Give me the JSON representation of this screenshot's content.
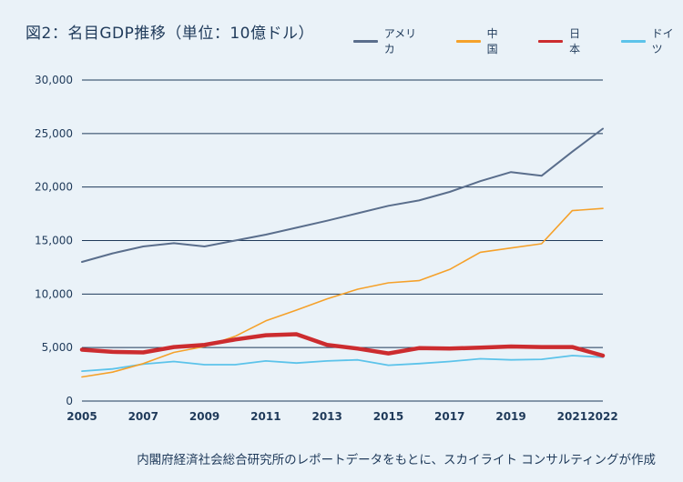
{
  "title": "図2：名目GDP推移（単位：10億ドル）",
  "source": "内閣府経済社会総合研究所のレポートデータをもとに、スカイライト コンサルティングが作成",
  "chart_data": {
    "type": "line",
    "title": "図2：名目GDP推移（単位：10億ドル）",
    "x": [
      2005,
      2006,
      2007,
      2008,
      2009,
      2010,
      2011,
      2012,
      2013,
      2014,
      2015,
      2016,
      2017,
      2018,
      2019,
      2020,
      2021,
      2022
    ],
    "xticks": [
      "2005",
      "2007",
      "2009",
      "2011",
      "2013",
      "2015",
      "2017",
      "2019",
      "2021",
      "2022"
    ],
    "xtick_values": [
      2005,
      2007,
      2009,
      2011,
      2013,
      2015,
      2017,
      2019,
      2021,
      2022
    ],
    "yticks": [
      "0",
      "5,000",
      "10,000",
      "15,000",
      "20,000",
      "25,000",
      "30,000"
    ],
    "ytick_values": [
      0,
      5000,
      10000,
      15000,
      20000,
      25000,
      30000
    ],
    "ylim": [
      0,
      30000
    ],
    "xlim": [
      2005,
      2022
    ],
    "grid": "horizontal",
    "legend_position": "top-right",
    "series": [
      {
        "name": "アメリカ",
        "color": "#5a6e8c",
        "values": [
          13000,
          13800,
          14450,
          14750,
          14450,
          15000,
          15550,
          16200,
          16850,
          17550,
          18250,
          18750,
          19550,
          20550,
          21400,
          21050,
          23300,
          25450
        ]
      },
      {
        "name": "中国",
        "color": "#f5a12a",
        "values": [
          2250,
          2700,
          3500,
          4550,
          5100,
          6050,
          7500,
          8500,
          9550,
          10450,
          11050,
          11250,
          12300,
          13900,
          14300,
          14700,
          17800,
          18000
        ]
      },
      {
        "name": "日本",
        "color": "#cc2c2f",
        "values": [
          4800,
          4600,
          4550,
          5050,
          5250,
          5750,
          6150,
          6250,
          5250,
          4900,
          4450,
          4950,
          4900,
          5000,
          5100,
          5050,
          5050,
          4250
        ]
      },
      {
        "name": "ドイツ",
        "color": "#5cc3ea",
        "values": [
          2800,
          3000,
          3450,
          3700,
          3400,
          3400,
          3750,
          3550,
          3750,
          3850,
          3350,
          3500,
          3700,
          3950,
          3850,
          3900,
          4250,
          4100
        ]
      }
    ]
  }
}
